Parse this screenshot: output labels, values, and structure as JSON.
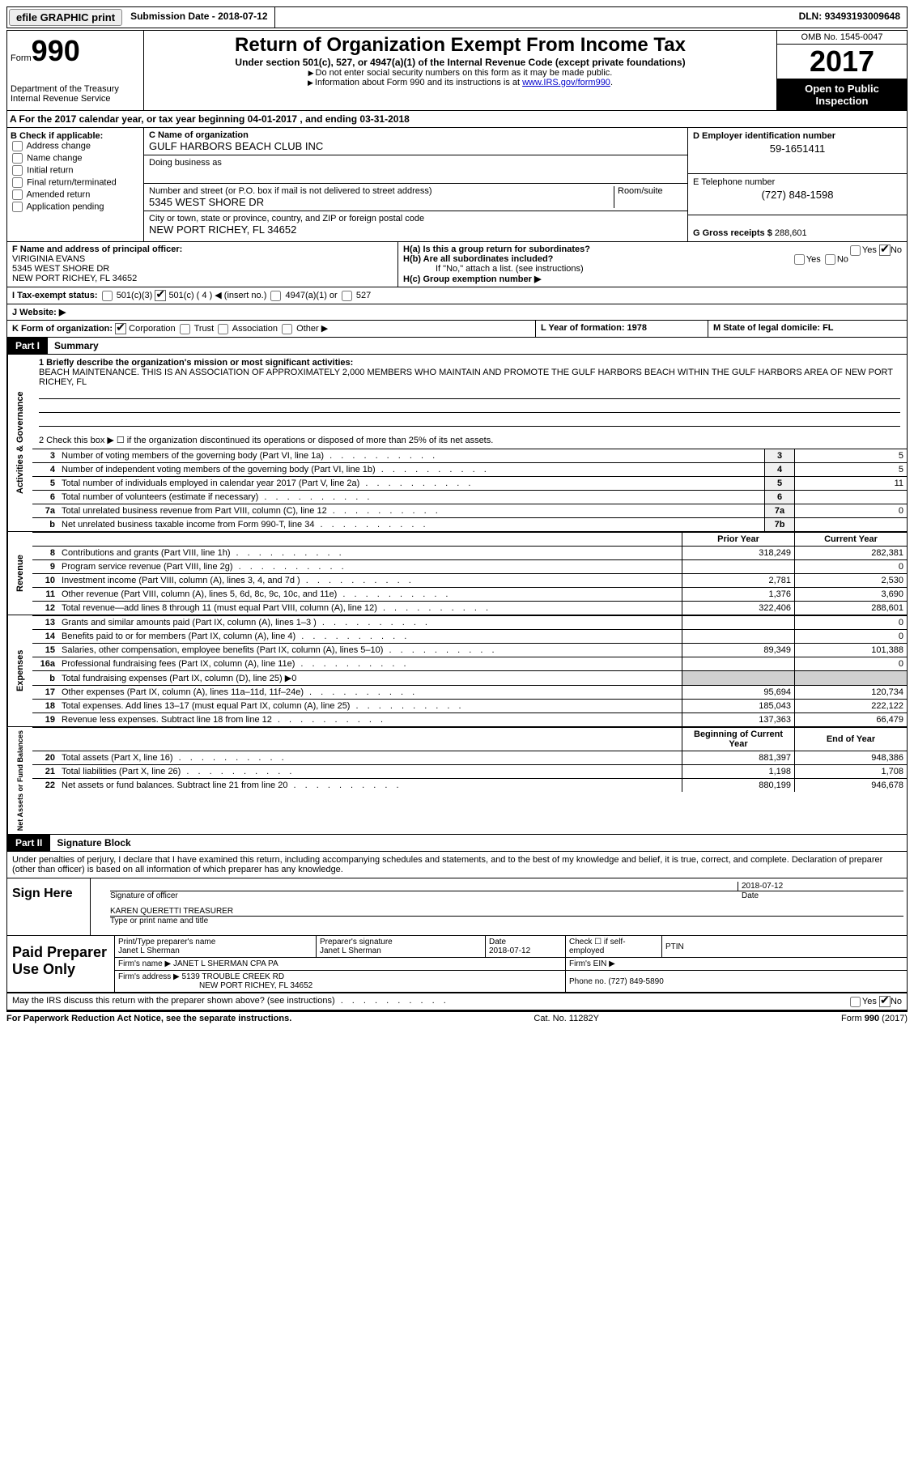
{
  "topbar": {
    "efile_btn": "efile GRAPHIC print",
    "sub_date_label": "Submission Date - ",
    "sub_date": "2018-07-12",
    "dln_label": "DLN: ",
    "dln": "93493193009648"
  },
  "header": {
    "form_label": "Form",
    "form_no": "990",
    "dept": "Department of the Treasury",
    "irs": "Internal Revenue Service",
    "title": "Return of Organization Exempt From Income Tax",
    "sub": "Under section 501(c), 527, or 4947(a)(1) of the Internal Revenue Code (except private foundations)",
    "note1": "Do not enter social security numbers on this form as it may be made public.",
    "note2_prefix": "Information about Form 990 and its instructions is at ",
    "note2_link": "www.IRS.gov/form990",
    "omb": "OMB No. 1545-0047",
    "year": "2017",
    "inspect": "Open to Public Inspection"
  },
  "sectionA": {
    "prefix": "A  For the 2017 calendar year, or tax year beginning ",
    "begin": "04-01-2017",
    "mid": " , and ending ",
    "end": "03-31-2018"
  },
  "colB": {
    "label": "B Check if applicable:",
    "items": [
      "Address change",
      "Name change",
      "Initial return",
      "Final return/terminated",
      "Amended return",
      "Application pending"
    ]
  },
  "colC": {
    "name_label": "C Name of organization",
    "name": "GULF HARBORS BEACH CLUB INC",
    "dba_label": "Doing business as",
    "dba": "",
    "street_label": "Number and street (or P.O. box if mail is not delivered to street address)",
    "room_label": "Room/suite",
    "street": "5345 WEST SHORE DR",
    "city_label": "City or town, state or province, country, and ZIP or foreign postal code",
    "city": "NEW PORT RICHEY, FL  34652"
  },
  "colD": {
    "ein_label": "D Employer identification number",
    "ein": "59-1651411",
    "phone_label": "E Telephone number",
    "phone": "(727) 848-1598",
    "gross_label": "G Gross receipts $ ",
    "gross": "288,601"
  },
  "officer": {
    "label": "F Name and address of principal officer:",
    "name": "VIRIGINIA EVANS",
    "street": "5345 WEST SHORE DR",
    "city": "NEW PORT RICHEY, FL  34652"
  },
  "hblock": {
    "ha": "H(a)  Is this a group return for subordinates?",
    "hb": "H(b)  Are all subordinates included?",
    "hb_note": "If \"No,\" attach a list. (see instructions)",
    "hc": "H(c)  Group exemption number ▶",
    "yes": "Yes",
    "no": "No"
  },
  "taxstatus": {
    "label": "I  Tax-exempt status:",
    "opts": [
      "501(c)(3)",
      "501(c) ( 4 ) ◀ (insert no.)",
      "4947(a)(1) or",
      "527"
    ]
  },
  "website": {
    "label": "J  Website: ▶"
  },
  "kline": {
    "label": "K Form of organization:",
    "opts": [
      "Corporation",
      "Trust",
      "Association",
      "Other ▶"
    ]
  },
  "lm": {
    "l": "L Year of formation: 1978",
    "m": "M State of legal domicile: FL"
  },
  "part1": {
    "tab": "Part I",
    "label": "Summary"
  },
  "mission": {
    "label": "1  Briefly describe the organization's mission or most significant activities:",
    "text": "BEACH MAINTENANCE. THIS IS AN ASSOCIATION OF APPROXIMATELY 2,000 MEMBERS WHO MAINTAIN AND PROMOTE THE GULF HARBORS BEACH WITHIN THE GULF HARBORS AREA OF NEW PORT RICHEY, FL"
  },
  "governance": {
    "line2": "2  Check this box ▶ ☐  if the organization discontinued its operations or disposed of more than 25% of its net assets.",
    "rows": [
      {
        "n": "3",
        "d": "Number of voting members of the governing body (Part VI, line 1a)",
        "box": "3",
        "v": "5"
      },
      {
        "n": "4",
        "d": "Number of independent voting members of the governing body (Part VI, line 1b)",
        "box": "4",
        "v": "5"
      },
      {
        "n": "5",
        "d": "Total number of individuals employed in calendar year 2017 (Part V, line 2a)",
        "box": "5",
        "v": "11"
      },
      {
        "n": "6",
        "d": "Total number of volunteers (estimate if necessary)",
        "box": "6",
        "v": ""
      },
      {
        "n": "7a",
        "d": "Total unrelated business revenue from Part VIII, column (C), line 12",
        "box": "7a",
        "v": "0"
      },
      {
        "n": "b",
        "d": "Net unrelated business taxable income from Form 990-T, line 34",
        "box": "7b",
        "v": ""
      }
    ]
  },
  "revenue": {
    "hdr_prior": "Prior Year",
    "hdr_curr": "Current Year",
    "rows": [
      {
        "n": "8",
        "d": "Contributions and grants (Part VIII, line 1h)",
        "p": "318,249",
        "c": "282,381"
      },
      {
        "n": "9",
        "d": "Program service revenue (Part VIII, line 2g)",
        "p": "",
        "c": "0"
      },
      {
        "n": "10",
        "d": "Investment income (Part VIII, column (A), lines 3, 4, and 7d )",
        "p": "2,781",
        "c": "2,530"
      },
      {
        "n": "11",
        "d": "Other revenue (Part VIII, column (A), lines 5, 6d, 8c, 9c, 10c, and 11e)",
        "p": "1,376",
        "c": "3,690"
      },
      {
        "n": "12",
        "d": "Total revenue—add lines 8 through 11 (must equal Part VIII, column (A), line 12)",
        "p": "322,406",
        "c": "288,601"
      }
    ]
  },
  "expenses": {
    "rows": [
      {
        "n": "13",
        "d": "Grants and similar amounts paid (Part IX, column (A), lines 1–3 )",
        "p": "",
        "c": "0"
      },
      {
        "n": "14",
        "d": "Benefits paid to or for members (Part IX, column (A), line 4)",
        "p": "",
        "c": "0"
      },
      {
        "n": "15",
        "d": "Salaries, other compensation, employee benefits (Part IX, column (A), lines 5–10)",
        "p": "89,349",
        "c": "101,388"
      },
      {
        "n": "16a",
        "d": "Professional fundraising fees (Part IX, column (A), line 11e)",
        "p": "",
        "c": "0"
      },
      {
        "n": "b",
        "d": "Total fundraising expenses (Part IX, column (D), line 25) ▶0",
        "p": "SHADE",
        "c": "SHADE"
      },
      {
        "n": "17",
        "d": "Other expenses (Part IX, column (A), lines 11a–11d, 11f–24e)",
        "p": "95,694",
        "c": "120,734"
      },
      {
        "n": "18",
        "d": "Total expenses. Add lines 13–17 (must equal Part IX, column (A), line 25)",
        "p": "185,043",
        "c": "222,122"
      },
      {
        "n": "19",
        "d": "Revenue less expenses. Subtract line 18 from line 12",
        "p": "137,363",
        "c": "66,479"
      }
    ]
  },
  "netassets": {
    "hdr_begin": "Beginning of Current Year",
    "hdr_end": "End of Year",
    "rows": [
      {
        "n": "20",
        "d": "Total assets (Part X, line 16)",
        "p": "881,397",
        "c": "948,386"
      },
      {
        "n": "21",
        "d": "Total liabilities (Part X, line 26)",
        "p": "1,198",
        "c": "1,708"
      },
      {
        "n": "22",
        "d": "Net assets or fund balances. Subtract line 21 from line 20",
        "p": "880,199",
        "c": "946,678"
      }
    ]
  },
  "part2": {
    "tab": "Part II",
    "label": "Signature Block"
  },
  "sig": {
    "penalty": "Under penalties of perjury, I declare that I have examined this return, including accompanying schedules and statements, and to the best of my knowledge and belief, it is true, correct, and complete. Declaration of preparer (other than officer) is based on all information of which preparer has any knowledge.",
    "sign_here": "Sign Here",
    "sig_officer": "Signature of officer",
    "date_lbl": "Date",
    "date": "2018-07-12",
    "name_title": "KAREN QUERETTI TREASURER",
    "name_caption": "Type or print name and title"
  },
  "paid": {
    "label": "Paid Preparer Use Only",
    "print_lbl": "Print/Type preparer's name",
    "print_name": "Janet L Sherman",
    "sig_lbl": "Preparer's signature",
    "sig_name": "Janet L Sherman",
    "date_lbl": "Date",
    "date": "2018-07-12",
    "check_lbl": "Check ☐ if self-employed",
    "ptin_lbl": "PTIN",
    "firm_name_lbl": "Firm's name    ▶",
    "firm_name": "JANET L SHERMAN CPA PA",
    "firm_ein_lbl": "Firm's EIN ▶",
    "firm_addr_lbl": "Firm's address ▶",
    "firm_addr": "5139 TROUBLE CREEK RD",
    "firm_city": "NEW PORT RICHEY, FL  34652",
    "phone_lbl": "Phone no. ",
    "phone": "(727) 849-5890"
  },
  "discuss": {
    "text": "May the IRS discuss this return with the preparer shown above? (see instructions)",
    "yes": "Yes",
    "no": "No"
  },
  "footer": {
    "left": "For Paperwork Reduction Act Notice, see the separate instructions.",
    "mid": "Cat. No. 11282Y",
    "right": "Form 990 (2017)"
  },
  "vlabels": {
    "gov": "Activities & Governance",
    "rev": "Revenue",
    "exp": "Expenses",
    "net": "Net Assets or Fund Balances"
  }
}
